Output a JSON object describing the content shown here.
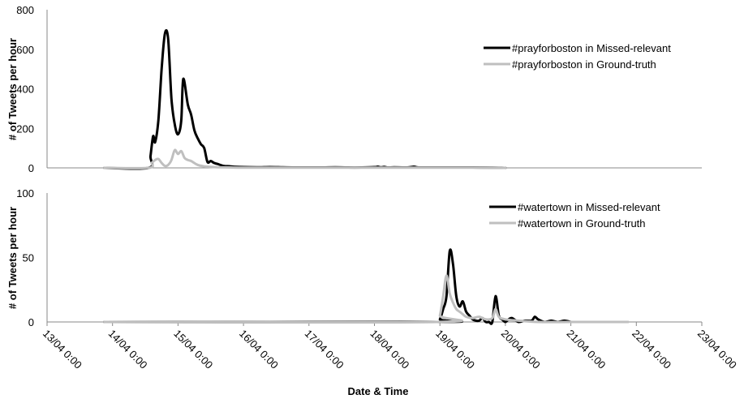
{
  "chart_data": [
    {
      "type": "line",
      "ylabel": "# of Tweets per hour",
      "ylim": [
        0,
        800
      ],
      "yticks": [
        "0",
        "200",
        "400",
        "600",
        "800"
      ],
      "legend_position": "top-right",
      "series": [
        {
          "name": "#prayforboston in Missed-relevant",
          "color": "#000000",
          "x": [
            0.875,
            1.55,
            1.58,
            1.62,
            1.65,
            1.7,
            1.75,
            1.8,
            1.85,
            1.9,
            1.95,
            2.0,
            2.05,
            2.08,
            2.15,
            2.2,
            2.25,
            2.3,
            2.35,
            2.4,
            2.45,
            2.5,
            2.55,
            2.6,
            2.7,
            2.8,
            2.9,
            3.2,
            3.4,
            3.6,
            3.8,
            4.0,
            4.2,
            4.4,
            4.6,
            4.8,
            5.0,
            5.05,
            5.1,
            5.15,
            5.2,
            5.3,
            5.5,
            5.6,
            5.65,
            5.7,
            5.9,
            6.2,
            6.5,
            6.8,
            7.0
          ],
          "values": [
            0,
            0,
            60,
            160,
            130,
            240,
            500,
            680,
            650,
            350,
            220,
            170,
            240,
            450,
            320,
            270,
            190,
            150,
            120,
            100,
            30,
            35,
            25,
            20,
            10,
            8,
            5,
            3,
            4,
            3,
            2,
            2,
            2,
            3,
            2,
            2,
            4,
            6,
            3,
            5,
            2,
            3,
            2,
            6,
            3,
            2,
            2,
            2,
            2,
            1,
            0
          ]
        },
        {
          "name": "#prayforboston in Ground-truth",
          "color": "#bfbfbf",
          "x": [
            0.875,
            1.55,
            1.6,
            1.65,
            1.7,
            1.75,
            1.8,
            1.85,
            1.9,
            1.95,
            2.0,
            2.05,
            2.1,
            2.15,
            2.2,
            2.3,
            2.4,
            2.5,
            2.6,
            2.8,
            3.0,
            3.5,
            4.0,
            4.5,
            5.0,
            5.5,
            6.0,
            6.5,
            7.0
          ],
          "values": [
            0,
            0,
            25,
            40,
            45,
            25,
            10,
            15,
            40,
            90,
            70,
            85,
            50,
            40,
            35,
            15,
            8,
            5,
            3,
            2,
            1,
            1,
            1,
            1,
            1,
            1,
            1,
            1,
            0
          ]
        }
      ]
    },
    {
      "type": "line",
      "xlabel": "Date & Time",
      "ylabel": "# of Tweets per hour",
      "ylim": [
        0,
        100
      ],
      "yticks": [
        "0",
        "50",
        "100"
      ],
      "xticks": [
        "13/04 0:00",
        "14/04 0:00",
        "15/04 0:00",
        "16/04 0:00",
        "17/04 0:00",
        "18/04 0:00",
        "19/04 0:00",
        "20/04 0:00",
        "21/04 0:00",
        "22/04 0:00",
        "23/04 0:00"
      ],
      "legend_position": "top-right",
      "series": [
        {
          "name": "#watertown in Missed-relevant",
          "color": "#000000",
          "x": [
            0.875,
            5.95,
            6.0,
            6.05,
            6.1,
            6.15,
            6.2,
            6.25,
            6.3,
            6.35,
            6.4,
            6.45,
            6.5,
            6.55,
            6.6,
            6.65,
            6.7,
            6.75,
            6.8,
            6.85,
            6.9,
            6.95,
            7.0,
            7.05,
            7.1,
            7.2,
            7.3,
            7.4,
            7.45,
            7.5,
            7.6,
            7.7,
            7.8,
            7.9,
            8.0
          ],
          "values": [
            0,
            0,
            2,
            10,
            20,
            55,
            45,
            20,
            12,
            16,
            8,
            5,
            2,
            1,
            1,
            3,
            0,
            0,
            0,
            20,
            5,
            2,
            0,
            2,
            3,
            0,
            1,
            1,
            4,
            2,
            0,
            1,
            0,
            1,
            0
          ]
        },
        {
          "name": "#watertown in Ground-truth",
          "color": "#bfbfbf",
          "x": [
            0.875,
            5.95,
            6.0,
            6.05,
            6.1,
            6.15,
            6.2,
            6.25,
            6.3,
            6.35,
            6.4,
            6.5,
            6.6,
            6.7,
            6.8,
            6.85,
            6.9,
            7.0,
            7.2,
            7.5,
            8.0,
            8.5,
            8.875
          ],
          "values": [
            0,
            0,
            5,
            20,
            36,
            22,
            15,
            10,
            8,
            6,
            4,
            3,
            4,
            2,
            3,
            10,
            4,
            2,
            1,
            0,
            0,
            0,
            0
          ]
        }
      ]
    }
  ]
}
